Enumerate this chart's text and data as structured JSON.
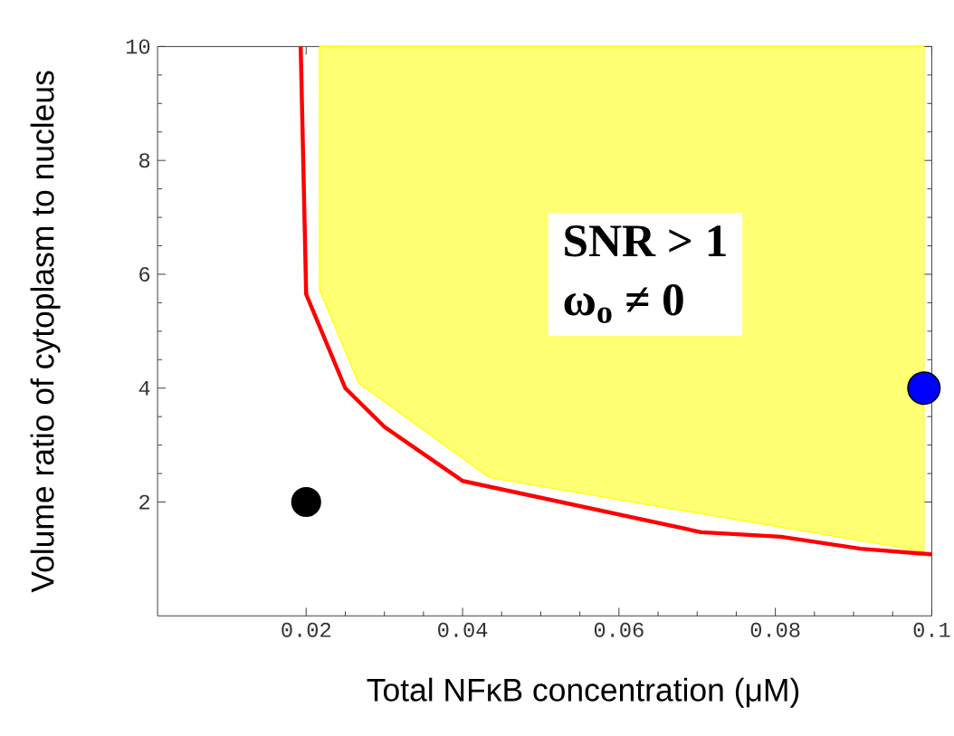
{
  "chart_data": {
    "type": "line",
    "xlabel": "Total NFκB concentration (μM)",
    "ylabel": "Volume ratio of cytoplasm to nucleus",
    "xlim": [
      0.001,
      0.1
    ],
    "ylim": [
      0,
      10
    ],
    "xticks": [
      0.02,
      0.04,
      0.06,
      0.08,
      0.1
    ],
    "yticks": [
      2,
      4,
      6,
      8,
      10
    ],
    "annotations": [
      "SNR > 1",
      "ω$_{o}$ ≠ 0"
    ],
    "series": [
      {
        "type": "area",
        "color": "#ffff00",
        "x": [
          0.0217,
          0.0217,
          0.0267,
          0.0434,
          0.099,
          0.099
        ],
        "values": [
          10,
          5.73,
          4.09,
          2.43,
          1.13,
          10
        ]
      },
      {
        "color": "#ff0000",
        "x": [
          0.0193,
          0.02,
          0.025,
          0.03,
          0.04,
          0.0705,
          0.0807,
          0.0909,
          0.1
        ],
        "values": [
          10,
          5.65,
          4.0,
          3.32,
          2.37,
          1.47,
          1.39,
          1.18,
          1.08
        ]
      },
      {
        "type": "scatter",
        "marker": "circle",
        "color": "#000000",
        "x": [
          0.02
        ],
        "values": [
          2
        ]
      },
      {
        "type": "scatter",
        "marker": "circle",
        "color": "#0000ff",
        "x": [
          0.099
        ],
        "values": [
          4
        ]
      }
    ]
  }
}
